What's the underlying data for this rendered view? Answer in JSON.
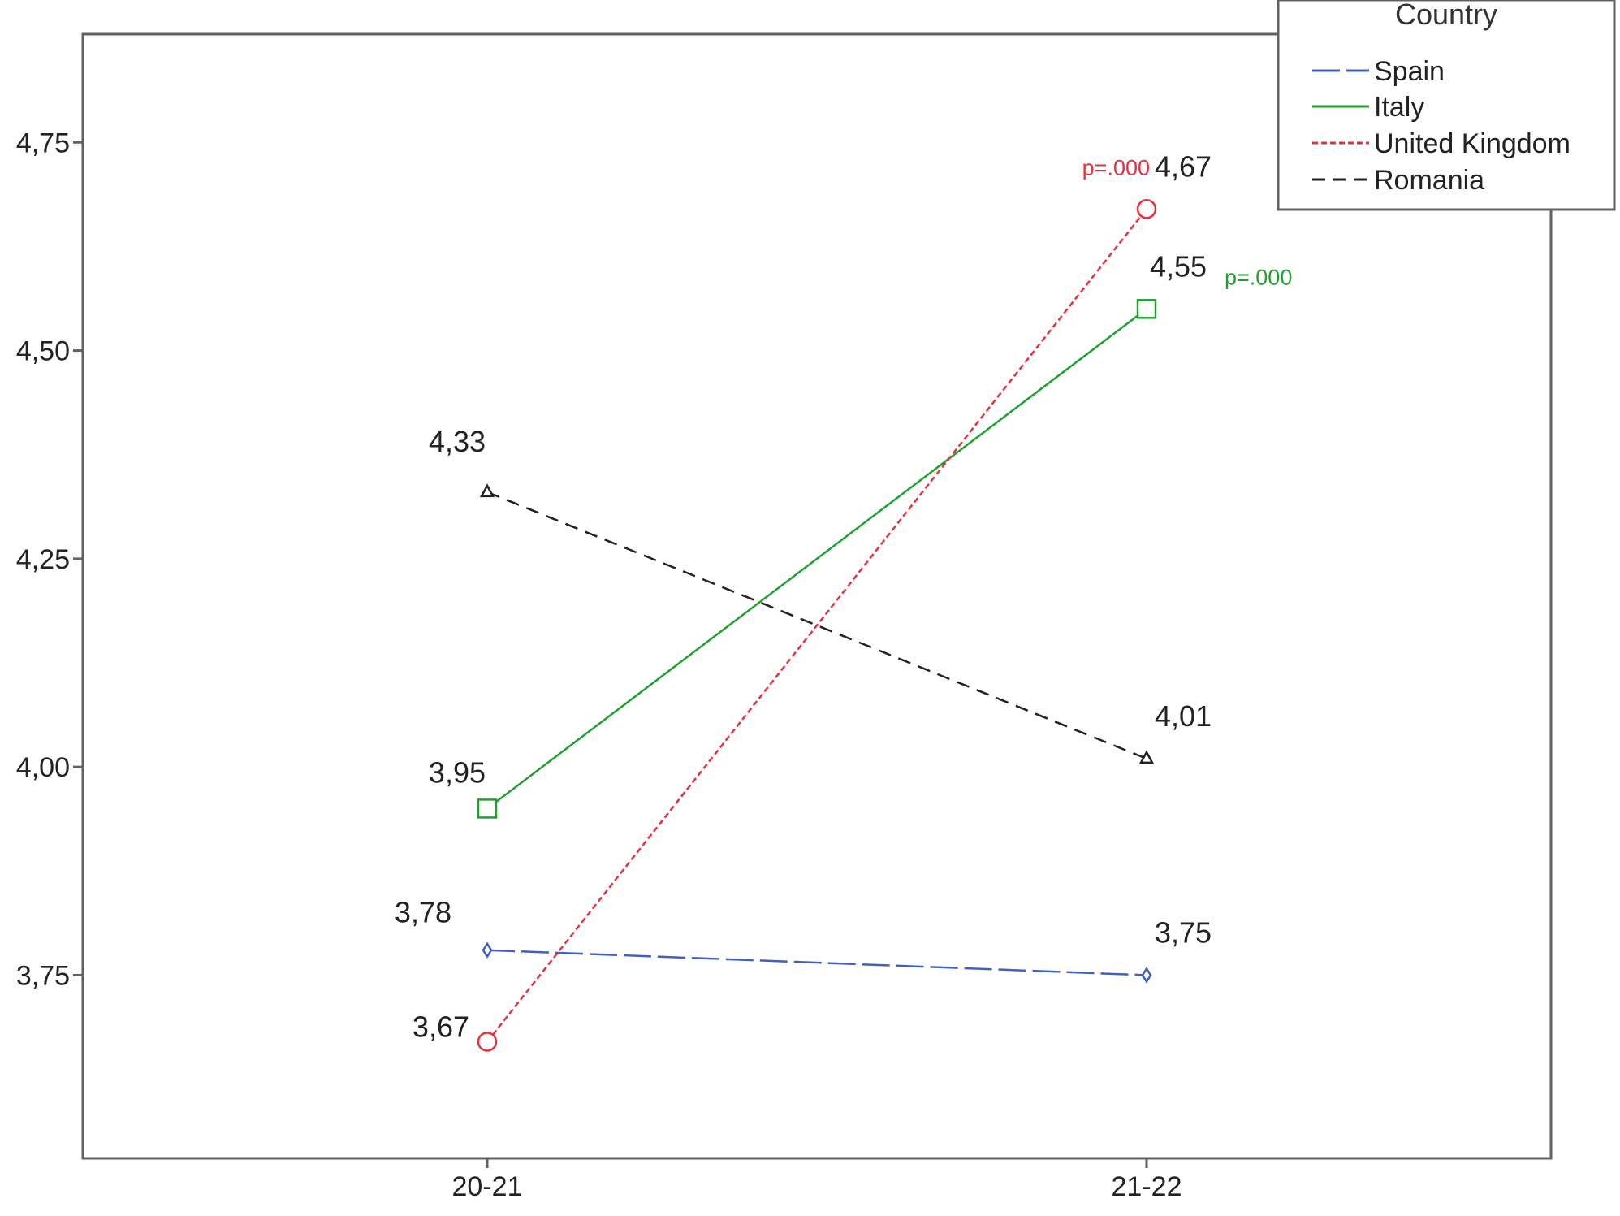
{
  "chart_data": {
    "type": "line",
    "categories": [
      "20-21",
      "21-22"
    ],
    "ylim": [
      3.53,
      4.88
    ],
    "yticks": [
      {
        "value": 3.75,
        "label": "3,75"
      },
      {
        "value": 4.0,
        "label": "4,00"
      },
      {
        "value": 4.25,
        "label": "4,25"
      },
      {
        "value": 4.5,
        "label": "4,50"
      },
      {
        "value": 4.75,
        "label": "4,75"
      }
    ],
    "grid": false,
    "legend": {
      "title": "Country",
      "placement": "top-right"
    },
    "series": [
      {
        "name": "Spain",
        "color": "#4060c0",
        "dash": "long-dash",
        "marker": "diamond",
        "values": [
          3.78,
          3.75
        ],
        "labels": [
          "3,78",
          "3,75"
        ]
      },
      {
        "name": "Italy",
        "color": "#20a030",
        "dash": "solid",
        "marker": "square",
        "values": [
          3.95,
          4.55
        ],
        "labels": [
          "3,95",
          "4,55"
        ]
      },
      {
        "name": "United Kingdom",
        "color": "#e83040",
        "dash": "short-dash",
        "marker": "circle",
        "values": [
          3.67,
          4.67
        ],
        "labels": [
          "3,67",
          "4,67"
        ]
      },
      {
        "name": "Romania",
        "color": "#222222",
        "dash": "dash",
        "marker": "triangle",
        "values": [
          4.33,
          4.01
        ],
        "labels": [
          "4,33",
          "4,01"
        ]
      }
    ],
    "annotations": [
      {
        "text": "p=.000",
        "series": "United Kingdom",
        "category": "21-22",
        "color": "#e83040"
      },
      {
        "text": "p=.000",
        "series": "Italy",
        "category": "21-22",
        "color": "#20a030"
      }
    ]
  }
}
